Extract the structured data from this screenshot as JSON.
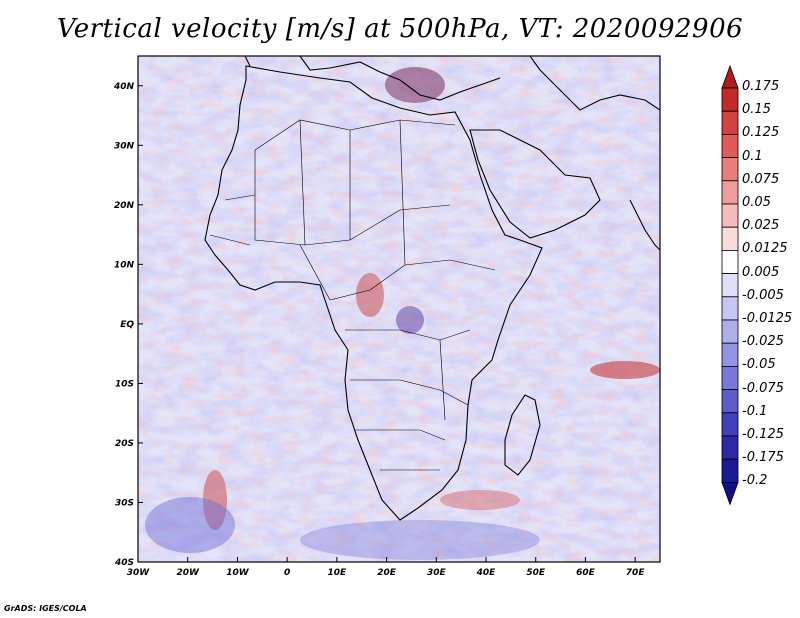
{
  "title": "Vertical velocity [m/s] at 500hPa, VT: 2020092906",
  "variable": "Vertical velocity",
  "units": "m/s",
  "level": "500hPa",
  "valid_time": "2020092906",
  "map": {
    "lon_range": [
      -30,
      75
    ],
    "lat_range": [
      -40,
      45
    ],
    "lon_ticks": [
      "30W",
      "20W",
      "10W",
      "0",
      "10E",
      "20E",
      "30E",
      "40E",
      "50E",
      "60E",
      "70E"
    ],
    "lat_ticks": [
      "40N",
      "30N",
      "20N",
      "10N",
      "EQ",
      "10S",
      "20S",
      "30S",
      "40S"
    ]
  },
  "colorbar": {
    "levels": [
      "0.175",
      "0.15",
      "0.125",
      "0.1",
      "0.075",
      "0.05",
      "0.025",
      "0.0125",
      "0.005",
      "-0.005",
      "-0.0125",
      "-0.025",
      "-0.05",
      "-0.075",
      "-0.1",
      "-0.125",
      "-0.175",
      "-0.2"
    ],
    "colors": [
      "#b01c1c",
      "#c42a2a",
      "#d44141",
      "#e05a5a",
      "#ea7c7c",
      "#f09c9c",
      "#f6bcbc",
      "#fbdcdc",
      "#ffffff",
      "#dedef8",
      "#c6c6f2",
      "#aeaeec",
      "#9494e4",
      "#7878d8",
      "#5c5cca",
      "#4040ba",
      "#2a2aa6",
      "#1a1a94",
      "#10108a"
    ]
  },
  "credit": "GrADS: IGES/COLA"
}
